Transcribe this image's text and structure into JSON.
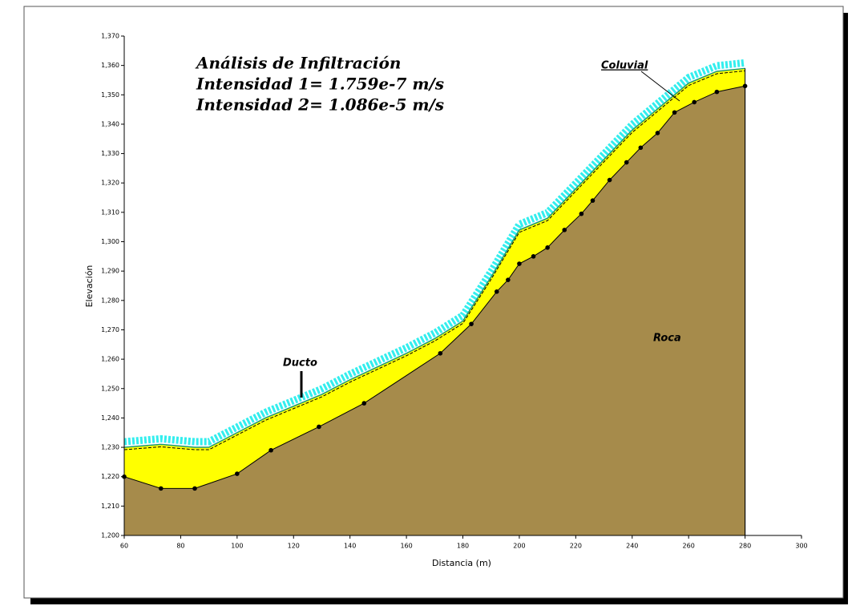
{
  "chart_data": {
    "type": "profile",
    "annotations": [
      "Análisis de Infiltración",
      "Intensidad 1= 1.759e-7 m/s",
      "Intensidad 2= 1.086e-5 m/s",
      "Ducto"
    ],
    "x_label": "Distancia (m)",
    "y_label": "Elevación",
    "xlim": [
      60,
      300
    ],
    "xticks": [
      60,
      80,
      100,
      120,
      140,
      160,
      180,
      200,
      220,
      240,
      260,
      280,
      300
    ],
    "ylim": [
      1200,
      1370
    ],
    "yticks": [
      {
        "value": 1200,
        "label": "1,200"
      },
      {
        "value": 1210,
        "label": "1,210"
      },
      {
        "value": 1220,
        "label": "1,220"
      },
      {
        "value": 1230,
        "label": "1,230"
      },
      {
        "value": 1240,
        "label": "1,240"
      },
      {
        "value": 1250,
        "label": "1,250"
      },
      {
        "value": 1260,
        "label": "1,260"
      },
      {
        "value": 1270,
        "label": "1,270"
      },
      {
        "value": 1280,
        "label": "1,280"
      },
      {
        "value": 1290,
        "label": "1,290"
      },
      {
        "value": 1300,
        "label": "1,300"
      },
      {
        "value": 1310,
        "label": "1,310"
      },
      {
        "value": 1320,
        "label": "1,320"
      },
      {
        "value": 1330,
        "label": "1,330"
      },
      {
        "value": 1340,
        "label": "1,340"
      },
      {
        "value": 1350,
        "label": "1,350"
      },
      {
        "value": 1360,
        "label": "1,360"
      },
      {
        "value": 1370,
        "label": "1,370"
      }
    ],
    "series": [
      {
        "name": "Roca",
        "color": "#a68b4b",
        "x": [
          60,
          73,
          85,
          100,
          112,
          129,
          145,
          172,
          183,
          192,
          196,
          200,
          205,
          210,
          216,
          222,
          226,
          232,
          238,
          243,
          249,
          255,
          262,
          270,
          280
        ],
        "values": [
          1220,
          1216,
          1216,
          1221,
          1229,
          1237,
          1245,
          1262,
          1272,
          1283,
          1287,
          1292.5,
          1295,
          1298,
          1304,
          1309.5,
          1314,
          1321,
          1327,
          1332,
          1337,
          1344,
          1347.5,
          1351,
          1353
        ]
      },
      {
        "name": "Coluvial",
        "color": "#ffff00",
        "x": [
          60,
          73,
          85,
          90,
          100,
          110,
          120,
          130,
          140,
          160,
          170,
          180,
          190,
          200,
          210,
          220,
          240,
          260,
          270,
          280
        ],
        "values": [
          1230,
          1231,
          1230,
          1230,
          1235,
          1240,
          1244,
          1248,
          1253,
          1262,
          1267,
          1273,
          1288,
          1304,
          1308,
          1318,
          1338,
          1354,
          1358,
          1359
        ]
      }
    ]
  }
}
